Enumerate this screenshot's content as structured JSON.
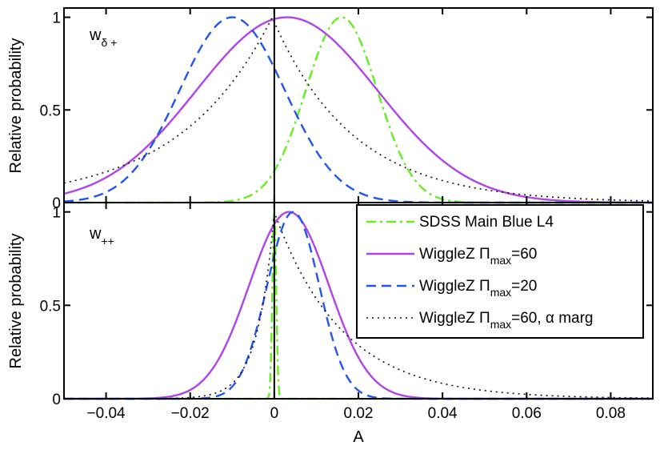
{
  "chart_data": [
    {
      "type": "line",
      "panel": "top",
      "panel_label": {
        "main": "w",
        "sub": "δ +"
      },
      "ylabel": "Relative probability",
      "xlabel": "",
      "xlim": [
        -0.05,
        0.09
      ],
      "ylim": [
        0,
        1.05
      ],
      "yticks": [
        0,
        0.5,
        1
      ],
      "ytick_labels": [
        "0",
        "0.5",
        "1"
      ],
      "xticks": [
        -0.04,
        -0.02,
        0,
        0.02,
        0.04,
        0.06,
        0.08
      ],
      "series": [
        {
          "name": "SDSS Main Blue L4",
          "color": "#66ee22",
          "dash": "dashdot",
          "kind": "gauss",
          "mean": 0.016,
          "sigma": 0.0085
        },
        {
          "name": "WiggleZ Πmax=60",
          "color": "#b044e8",
          "dash": "solid",
          "kind": "gauss",
          "mean": 0.003,
          "sigma": 0.0215
        },
        {
          "name": "WiggleZ Πmax=20",
          "color": "#2255ee",
          "dash": "dashed",
          "kind": "gauss",
          "mean": -0.01,
          "sigma": 0.0125
        },
        {
          "name": "WiggleZ Πmax=60, α marg",
          "color": "#111111",
          "dash": "dotted",
          "kind": "peaked",
          "peak": -0.0005,
          "left_scale": 0.022,
          "right_scale": 0.019
        }
      ]
    },
    {
      "type": "line",
      "panel": "bottom",
      "panel_label": {
        "main": "w",
        "sub": "++"
      },
      "ylabel": "Relative probability",
      "xlabel": "A",
      "xlim": [
        -0.05,
        0.09
      ],
      "ylim": [
        0,
        1.05
      ],
      "yticks": [
        0,
        0.5,
        1
      ],
      "ytick_labels": [
        "0",
        "0.5",
        "1"
      ],
      "xticks": [
        -0.04,
        -0.02,
        0,
        0.02,
        0.04,
        0.06,
        0.08
      ],
      "xtick_labels": [
        "−0.04",
        "−0.02",
        "0",
        "0.02",
        "0.04",
        "0.06",
        "0.08"
      ],
      "series": [
        {
          "name": "SDSS Main Blue L4",
          "color": "#66ee22",
          "dash": "dashdot",
          "kind": "gauss",
          "mean": 0.0,
          "sigma": 0.00045
        },
        {
          "name": "WiggleZ Πmax=60",
          "color": "#b044e8",
          "dash": "solid",
          "kind": "gauss",
          "mean": 0.0035,
          "sigma": 0.0095
        },
        {
          "name": "WiggleZ Πmax=20",
          "color": "#2255ee",
          "dash": "dashed",
          "kind": "gauss",
          "mean": 0.0045,
          "sigma": 0.0062
        },
        {
          "name": "WiggleZ Πmax=60, α marg",
          "color": "#111111",
          "dash": "dotted",
          "kind": "peaked",
          "peak": 0.0,
          "left_scale": 0.004,
          "right_scale": 0.016
        }
      ],
      "legend": {
        "position": "top-right",
        "entries": [
          {
            "prefix": "SDSS Main Blue L4",
            "sub": "",
            "suffix": ""
          },
          {
            "prefix": "WiggleZ Π",
            "sub": "max",
            "suffix": "=60"
          },
          {
            "prefix": "WiggleZ Π",
            "sub": "max",
            "suffix": "=20"
          },
          {
            "prefix": "WiggleZ Π",
            "sub": "max",
            "suffix": "=60, α marg"
          }
        ]
      }
    }
  ]
}
